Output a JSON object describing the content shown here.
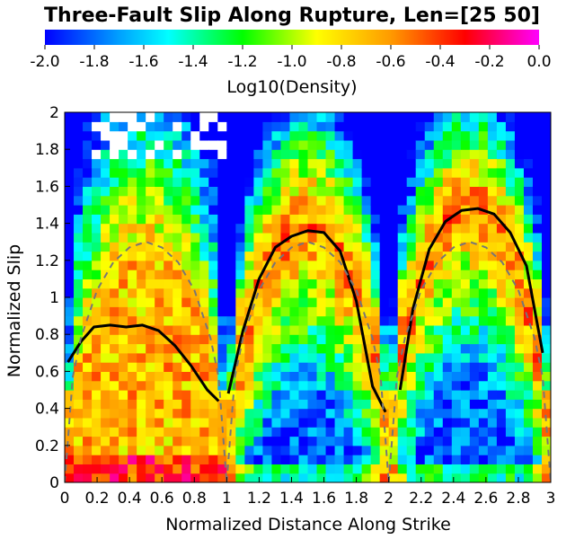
{
  "chart_data": {
    "type": "heatmap",
    "title": "Three-Fault Slip Along Rupture, Len=[25 50]",
    "xlabel": "Normalized Distance Along Strike",
    "ylabel": "Normalized Slip",
    "xlim": [
      0,
      3
    ],
    "ylim": [
      0,
      2
    ],
    "x_ticks": [
      "0",
      "0.2",
      "0.4",
      "0.6",
      "0.8",
      "1",
      "1.2",
      "1.4",
      "1.6",
      "1.8",
      "2",
      "2.2",
      "2.4",
      "2.6",
      "2.8",
      "3"
    ],
    "y_ticks": [
      "0",
      "0.2",
      "0.4",
      "0.6",
      "0.8",
      "1",
      "1.2",
      "1.4",
      "1.6",
      "1.8",
      "2"
    ],
    "colorbar": {
      "label": "Log10(Density)",
      "range": [
        -2.0,
        0.0
      ],
      "ticks": [
        "-2.0",
        "-1.8",
        "-1.6",
        "-1.4",
        "-1.2",
        "-1.0",
        "-0.8",
        "-0.6",
        "-0.4",
        "-0.2",
        "0.0"
      ]
    },
    "grid": {
      "nx": 54,
      "ny": 40
    },
    "series": [
      {
        "style": "solid-black",
        "x": [
          0.02,
          0.1,
          0.18,
          0.28,
          0.38,
          0.48,
          0.58,
          0.68,
          0.78,
          0.88,
          0.95
        ],
        "y": [
          0.65,
          0.76,
          0.84,
          0.85,
          0.84,
          0.85,
          0.82,
          0.74,
          0.63,
          0.5,
          0.44
        ]
      },
      {
        "style": "solid-black",
        "x": [
          1.01,
          1.1,
          1.2,
          1.3,
          1.4,
          1.5,
          1.6,
          1.7,
          1.8,
          1.9,
          1.98
        ],
        "y": [
          0.48,
          0.82,
          1.1,
          1.27,
          1.33,
          1.36,
          1.35,
          1.25,
          0.98,
          0.52,
          0.38
        ]
      },
      {
        "style": "solid-black",
        "x": [
          2.07,
          2.15,
          2.25,
          2.35,
          2.45,
          2.55,
          2.65,
          2.75,
          2.85,
          2.95
        ],
        "y": [
          0.5,
          0.94,
          1.26,
          1.41,
          1.47,
          1.48,
          1.45,
          1.35,
          1.17,
          0.7
        ]
      },
      {
        "style": "dashed-gray",
        "x": [
          0.0,
          0.05,
          0.1,
          0.2,
          0.3,
          0.4,
          0.5,
          0.6,
          0.7,
          0.8,
          0.9,
          0.95,
          1.0
        ],
        "y": [
          0.0,
          0.57,
          0.78,
          1.04,
          1.19,
          1.27,
          1.3,
          1.27,
          1.19,
          1.04,
          0.78,
          0.57,
          0.0
        ]
      },
      {
        "style": "dashed-gray",
        "x": [
          1.0,
          1.05,
          1.1,
          1.2,
          1.3,
          1.4,
          1.5,
          1.6,
          1.7,
          1.8,
          1.9,
          1.95,
          2.0
        ],
        "y": [
          0.0,
          0.57,
          0.78,
          1.04,
          1.19,
          1.27,
          1.3,
          1.27,
          1.19,
          1.04,
          0.78,
          0.57,
          0.0
        ]
      },
      {
        "style": "dashed-gray",
        "x": [
          2.0,
          2.05,
          2.1,
          2.2,
          2.3,
          2.4,
          2.5,
          2.6,
          2.7,
          2.8,
          2.9,
          2.95,
          3.0
        ],
        "y": [
          0.0,
          0.57,
          0.78,
          1.04,
          1.19,
          1.27,
          1.3,
          1.27,
          1.19,
          1.04,
          0.78,
          0.57,
          0.0
        ]
      }
    ]
  }
}
